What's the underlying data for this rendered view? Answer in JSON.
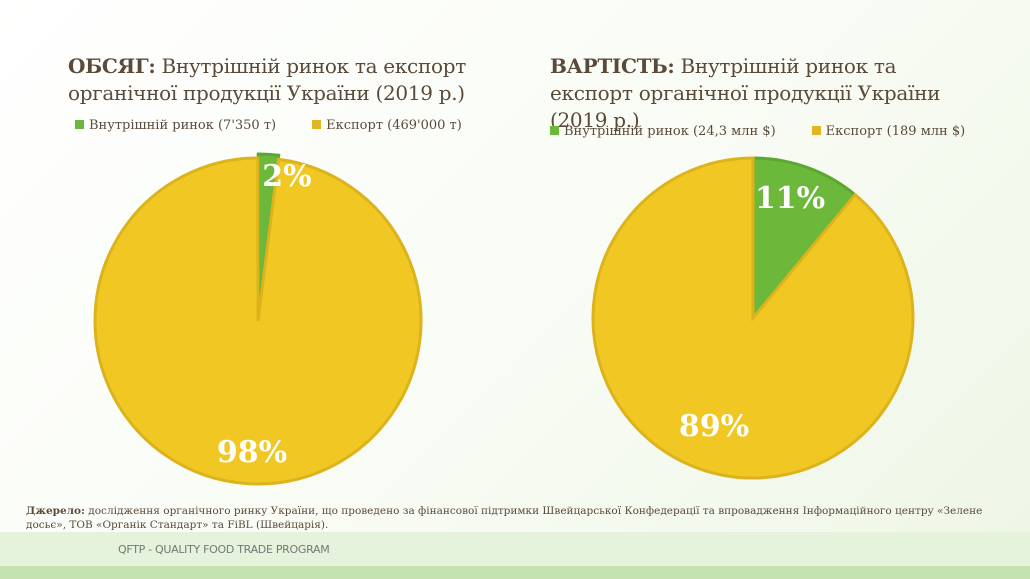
{
  "chart_data": [
    {
      "type": "pie",
      "title_bold": "ОБСЯГ:",
      "title": "Внутрішній ринок та експорт органічної продукції України (2019 р.)",
      "slices": [
        {
          "label": "Внутрішній ринок (7'350 т)",
          "value": 2,
          "display": "2%",
          "color": "#6cb83a"
        },
        {
          "label": "Експорт (469'000 т)",
          "value": 98,
          "display": "98%",
          "color": "#f1c823"
        }
      ]
    },
    {
      "type": "pie",
      "title_bold": "ВАРТІСТЬ:",
      "title": "Внутрішній ринок та експорт органічної продукції України (2019 р.)",
      "slices": [
        {
          "label": "Внутрішній ринок (24,3 млн $)",
          "value": 11,
          "display": "11%",
          "color": "#6cb83a"
        },
        {
          "label": "Експорт (189 млн $)",
          "value": 89,
          "display": "89%",
          "color": "#f1c823"
        }
      ]
    }
  ],
  "source_label": "Джерело:",
  "source_text": " дослідження органічного ринку України, що проведено за фінансової підтримки Швейцарської Конфедерації та впровадження Інформаційного центру «Зелене досьє», ТОВ «Органік Стандарт» та FiBL (Швейцарія).",
  "footer": "QFTP - QUALITY FOOD TRADE PROGRAM"
}
